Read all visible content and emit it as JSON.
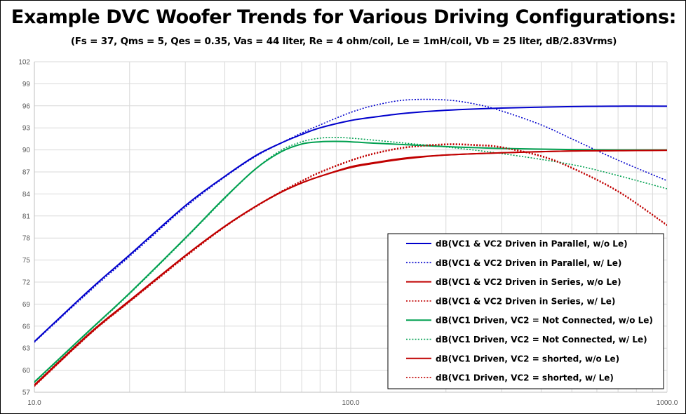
{
  "title": "Example DVC Woofer Trends for Various Driving Configurations:",
  "subtitle": "(Fs = 37, Qms = 5, Qes = 0.35, Vas = 44 liter, Re = 4 ohm/coil, Le = 1mH/coil, Vb = 25 liter, dB/2.83Vrms)",
  "chart_data": {
    "type": "line",
    "x_scale": "log",
    "xlim": [
      10,
      1000
    ],
    "ylim": [
      57,
      102
    ],
    "x_ticks": [
      10,
      100,
      1000
    ],
    "x_tick_labels": [
      "10.0",
      "100.0",
      "1000.0"
    ],
    "y_ticks": [
      57,
      60,
      63,
      66,
      69,
      72,
      75,
      78,
      81,
      84,
      87,
      90,
      93,
      96,
      99,
      102
    ],
    "y_tick_labels": [
      "57",
      "60",
      "63",
      "66",
      "69",
      "72",
      "75",
      "78",
      "81",
      "84",
      "87",
      "90",
      "93",
      "96",
      "99",
      "102"
    ],
    "grid": "both, including log minor x gridlines",
    "legend_position": "bottom-right",
    "series": [
      {
        "name": "dB(VC1 & VC2 Driven in Parallel, w/o Le)",
        "color": "#0000cc",
        "style": "solid",
        "x": [
          10,
          15,
          20,
          30,
          40,
          50,
          60,
          70,
          80,
          100,
          120,
          150,
          200,
          300,
          500,
          700,
          1000
        ],
        "y": [
          63.9,
          71.0,
          75.7,
          82.4,
          86.4,
          89.2,
          90.9,
          92.1,
          93.0,
          94.0,
          94.5,
          95.0,
          95.4,
          95.7,
          95.9,
          95.95,
          95.95
        ]
      },
      {
        "name": "dB(VC1 & VC2 Driven in Parallel, w/ Le)",
        "color": "#0000cc",
        "style": "dotted",
        "x": [
          10,
          15,
          20,
          30,
          40,
          50,
          60,
          70,
          80,
          100,
          120,
          150,
          200,
          250,
          300,
          400,
          500,
          700,
          1000
        ],
        "y": [
          63.8,
          70.8,
          75.5,
          82.2,
          86.3,
          89.1,
          90.9,
          92.3,
          93.4,
          95.1,
          96.1,
          96.8,
          96.8,
          96.2,
          95.3,
          93.4,
          91.5,
          88.6,
          85.8
        ]
      },
      {
        "name": "dB(VC1 & VC2 Driven in Series, w/o Le)",
        "color": "#c00000",
        "style": "solid",
        "x": [
          10,
          15,
          20,
          30,
          40,
          50,
          60,
          70,
          80,
          100,
          120,
          150,
          200,
          300,
          500,
          700,
          1000
        ],
        "y": [
          58.0,
          65.1,
          69.5,
          75.6,
          79.6,
          82.3,
          84.2,
          85.5,
          86.4,
          87.7,
          88.3,
          88.9,
          89.3,
          89.6,
          89.85,
          89.9,
          89.95
        ]
      },
      {
        "name": "dB(VC1 & VC2 Driven in Series, w/ Le)",
        "color": "#c00000",
        "style": "dotted",
        "x": [
          10,
          15,
          20,
          30,
          40,
          50,
          60,
          70,
          80,
          100,
          120,
          150,
          200,
          250,
          300,
          400,
          500,
          700,
          1000
        ],
        "y": [
          57.9,
          65.0,
          69.4,
          75.5,
          79.5,
          82.3,
          84.3,
          85.8,
          87.0,
          88.6,
          89.6,
          90.4,
          90.8,
          90.7,
          90.4,
          89.2,
          87.6,
          84.4,
          79.8
        ]
      },
      {
        "name": "dB(VC1 Driven, VC2 = Not Connected, w/o Le)",
        "color": "#00a050",
        "style": "solid",
        "x": [
          10,
          15,
          20,
          30,
          40,
          50,
          60,
          70,
          80,
          90,
          100,
          120,
          150,
          200,
          300,
          500,
          700,
          1000
        ],
        "y": [
          58.4,
          65.5,
          70.5,
          78.0,
          83.5,
          87.4,
          89.7,
          90.8,
          91.1,
          91.15,
          91.1,
          90.9,
          90.7,
          90.45,
          90.2,
          90.05,
          90.0,
          90.0
        ]
      },
      {
        "name": "dB(VC1 Driven, VC2 = Not Connected, w/ Le)",
        "color": "#00a050",
        "style": "dotted",
        "x": [
          10,
          15,
          20,
          30,
          40,
          50,
          60,
          70,
          80,
          90,
          100,
          120,
          150,
          200,
          300,
          500,
          700,
          1000
        ],
        "y": [
          58.3,
          65.4,
          70.4,
          77.9,
          83.4,
          87.4,
          89.9,
          91.1,
          91.6,
          91.7,
          91.6,
          91.3,
          90.9,
          90.4,
          89.5,
          88.0,
          86.5,
          84.7
        ]
      },
      {
        "name": "dB(VC1 Driven, VC2 = shorted, w/o Le)",
        "color": "#c00000",
        "style": "solid",
        "x": [
          10,
          15,
          20,
          30,
          40,
          50,
          60,
          70,
          80,
          100,
          120,
          150,
          200,
          300,
          500,
          700,
          1000
        ],
        "y": [
          57.9,
          65.0,
          69.4,
          75.6,
          79.6,
          82.3,
          84.2,
          85.5,
          86.4,
          87.6,
          88.2,
          88.8,
          89.3,
          89.6,
          89.85,
          89.9,
          89.95
        ]
      },
      {
        "name": "dB(VC1 Driven, VC2 = shorted, w/ Le)",
        "color": "#c00000",
        "style": "dotted",
        "x": [
          10,
          15,
          20,
          30,
          40,
          50,
          60,
          70,
          80,
          100,
          120,
          150,
          200,
          250,
          300,
          400,
          500,
          700,
          1000
        ],
        "y": [
          57.8,
          64.9,
          69.3,
          75.4,
          79.5,
          82.2,
          84.2,
          85.7,
          86.9,
          88.5,
          89.5,
          90.3,
          90.7,
          90.6,
          90.3,
          89.1,
          87.5,
          84.3,
          79.7
        ]
      }
    ]
  }
}
